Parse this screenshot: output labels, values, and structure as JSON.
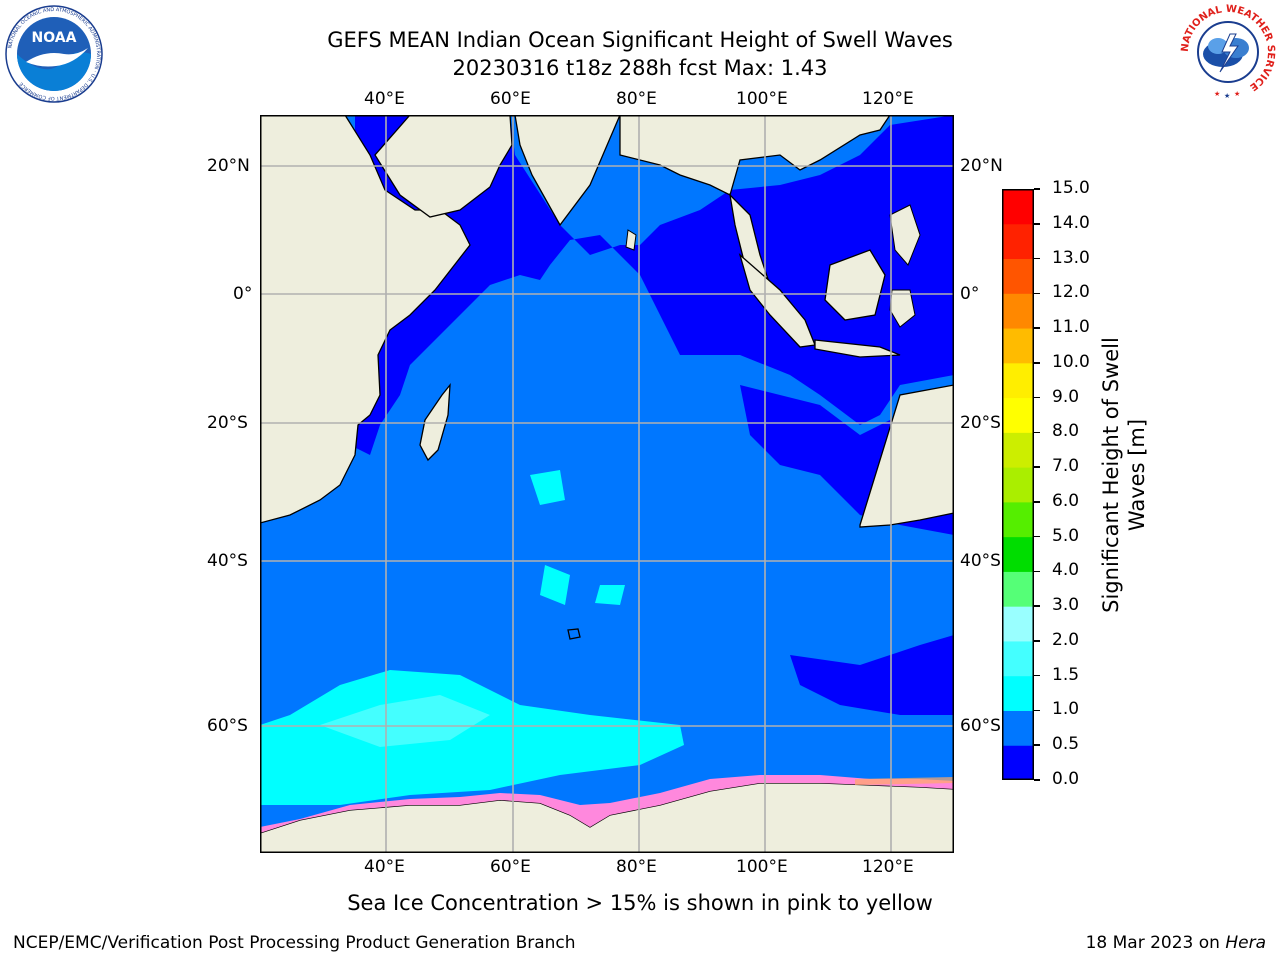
{
  "header": {
    "title_line1": "GEFS MEAN Indian Ocean Significant Height of Swell Waves",
    "title_line2": "20230316 t18z 288h fcst   Max: 1.43"
  },
  "logos": {
    "left": {
      "icon": "noaa-logo-icon",
      "text": "NOAA",
      "ring_text": "NATIONAL OCEANIC AND ATMOSPHERIC ADMINISTRATION · U.S. DEPARTMENT OF COMMERCE"
    },
    "right": {
      "icon": "national-weather-service-logo-icon",
      "ring_text": "NATIONAL WEATHER SERVICE"
    }
  },
  "map": {
    "lon_ticks": [
      "40°E",
      "60°E",
      "80°E",
      "100°E",
      "120°E"
    ],
    "lat_ticks": [
      "20°N",
      "0°",
      "20°S",
      "40°S",
      "60°S"
    ],
    "colors": {
      "land": "#eeeedd",
      "swell_0_05": "#0000ff",
      "swell_05_10": "#0077ff",
      "swell_10_15": "#00ffff",
      "swell_15_20": "#44ffff",
      "sea_ice_pink": "#ff88dd",
      "sea_ice_magenta": "#ff00ff",
      "sea_ice_yellow": "#ffee00"
    }
  },
  "colorbar": {
    "label_line1": "Significant Height of Swell",
    "label_line2": "Waves [m]",
    "ticks": [
      "0.0",
      "0.5",
      "1.0",
      "1.5",
      "2.0",
      "3.0",
      "4.0",
      "5.0",
      "6.0",
      "7.0",
      "8.0",
      "9.0",
      "10.0",
      "11.0",
      "12.0",
      "13.0",
      "14.0",
      "15.0"
    ],
    "colors": [
      "#0000ff",
      "#0077ff",
      "#00ffff",
      "#44ffff",
      "#99ffff",
      "#55ff77",
      "#00dd00",
      "#55ee00",
      "#aaee00",
      "#ccee00",
      "#ffff00",
      "#ffee00",
      "#ffbb00",
      "#ff8800",
      "#ff5500",
      "#ff2200",
      "#ff0000"
    ]
  },
  "caption": "Sea Ice Concentration > 15% is shown in pink to yellow",
  "footer": {
    "left": "NCEP/EMC/Verification Post Processing Product Generation Branch",
    "right_prefix": "18 Mar 2023 on ",
    "right_host": "Hera"
  }
}
